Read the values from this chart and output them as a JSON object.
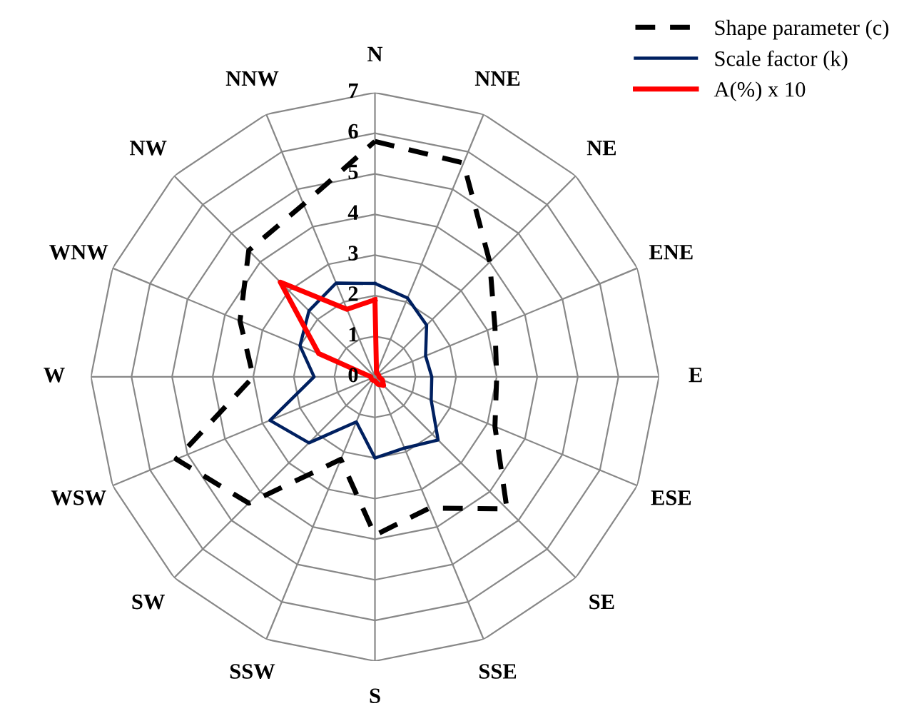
{
  "chart_data": {
    "type": "radar",
    "categories": [
      "N",
      "NNE",
      "NE",
      "ENE",
      "E",
      "ESE",
      "SE",
      "SSE",
      "S",
      "SSW",
      "SW",
      "WSW",
      "W",
      "WNW",
      "NW",
      "NNW"
    ],
    "ylim": [
      0,
      7
    ],
    "yticks": [
      0,
      1,
      2,
      3,
      4,
      5,
      6,
      7
    ],
    "grid": true,
    "legend": "top right",
    "series": [
      {
        "name": "Shape parameter (c)",
        "color": "#000000",
        "line_style": "dashed",
        "values": [
          5.8,
          5.7,
          4.0,
          3.2,
          3.0,
          3.2,
          4.6,
          3.5,
          3.9,
          2.2,
          4.4,
          5.3,
          3.0,
          3.6,
          4.4,
          4.6
        ]
      },
      {
        "name": "Scale factor (k)",
        "color": "#002060",
        "line_style": "solid",
        "values": [
          2.3,
          2.1,
          1.8,
          1.35,
          1.4,
          1.5,
          2.2,
          1.9,
          2.0,
          1.2,
          2.3,
          2.8,
          1.5,
          2.0,
          2.3,
          2.5
        ]
      },
      {
        "name": "A(%) x 10",
        "color": "#ff0000",
        "line_style": "solid",
        "values": [
          1.9,
          0.1,
          0.1,
          0.1,
          0.1,
          0.2,
          0.3,
          0.2,
          0.1,
          0.1,
          0.1,
          0.1,
          0.1,
          1.5,
          3.3,
          1.8
        ]
      }
    ]
  }
}
